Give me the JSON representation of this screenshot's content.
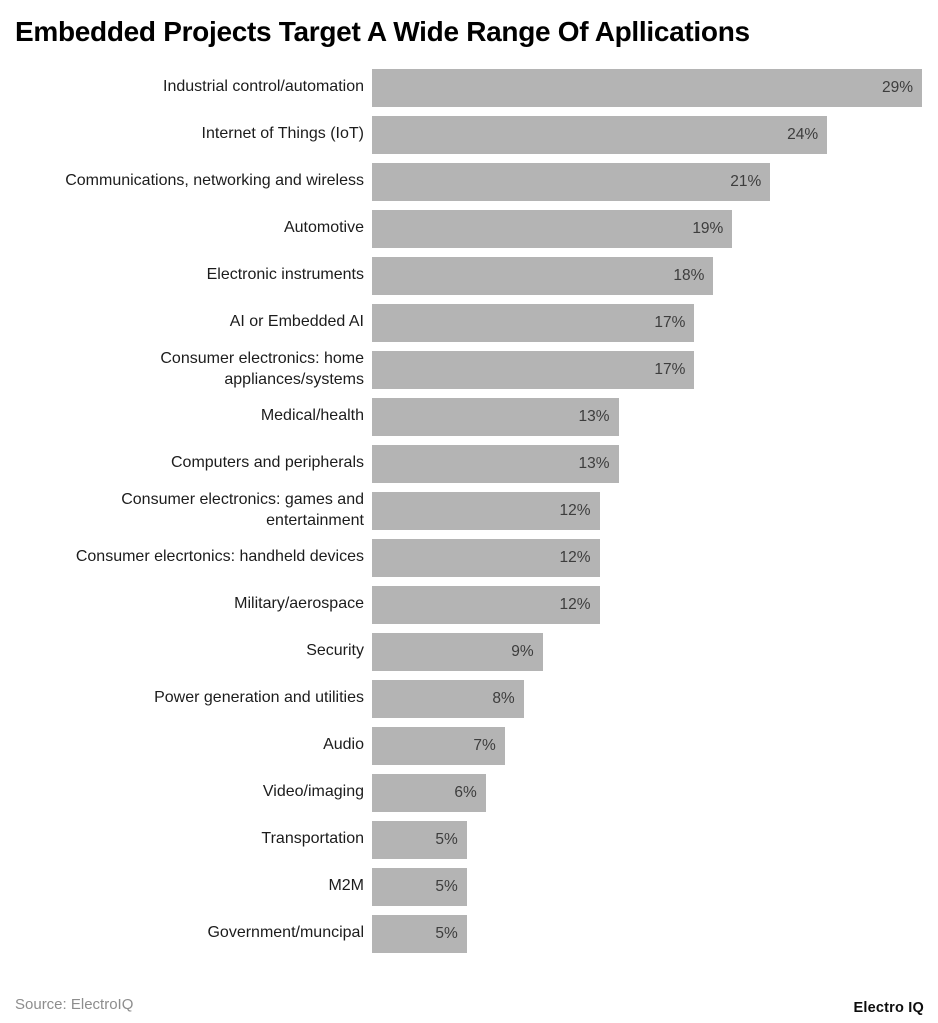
{
  "chart_data": {
    "type": "bar",
    "orientation": "horizontal",
    "title": "Embedded Projects Target A Wide Range Of Apllications",
    "categories": [
      "Industrial control/automation",
      "Internet of Things (IoT)",
      "Communications, networking and wireless",
      "Automotive",
      "Electronic instruments",
      "AI or Embedded AI",
      "Consumer electronics: home\nappliances/systems",
      "Medical/health",
      "Computers and peripherals",
      "Consumer electronics: games and\nentertainment",
      "Consumer elecrtonics: handheld devices",
      "Military/aerospace",
      "Security",
      "Power generation and utilities",
      "Audio",
      "Video/imaging",
      "Transportation",
      "M2M",
      "Government/muncipal"
    ],
    "values": [
      29,
      24,
      21,
      19,
      18,
      17,
      17,
      13,
      13,
      12,
      12,
      12,
      9,
      8,
      7,
      6,
      5,
      5,
      5
    ],
    "value_suffix": "%",
    "xlabel": "",
    "ylabel": "",
    "xlim": [
      0,
      29
    ],
    "grid": false,
    "legend": false,
    "bar_color": "#b4b4b4",
    "value_label_color": "#3d3d3d"
  },
  "footer": {
    "source": "Source: ElectroIQ",
    "logo": "Electro IQ"
  }
}
